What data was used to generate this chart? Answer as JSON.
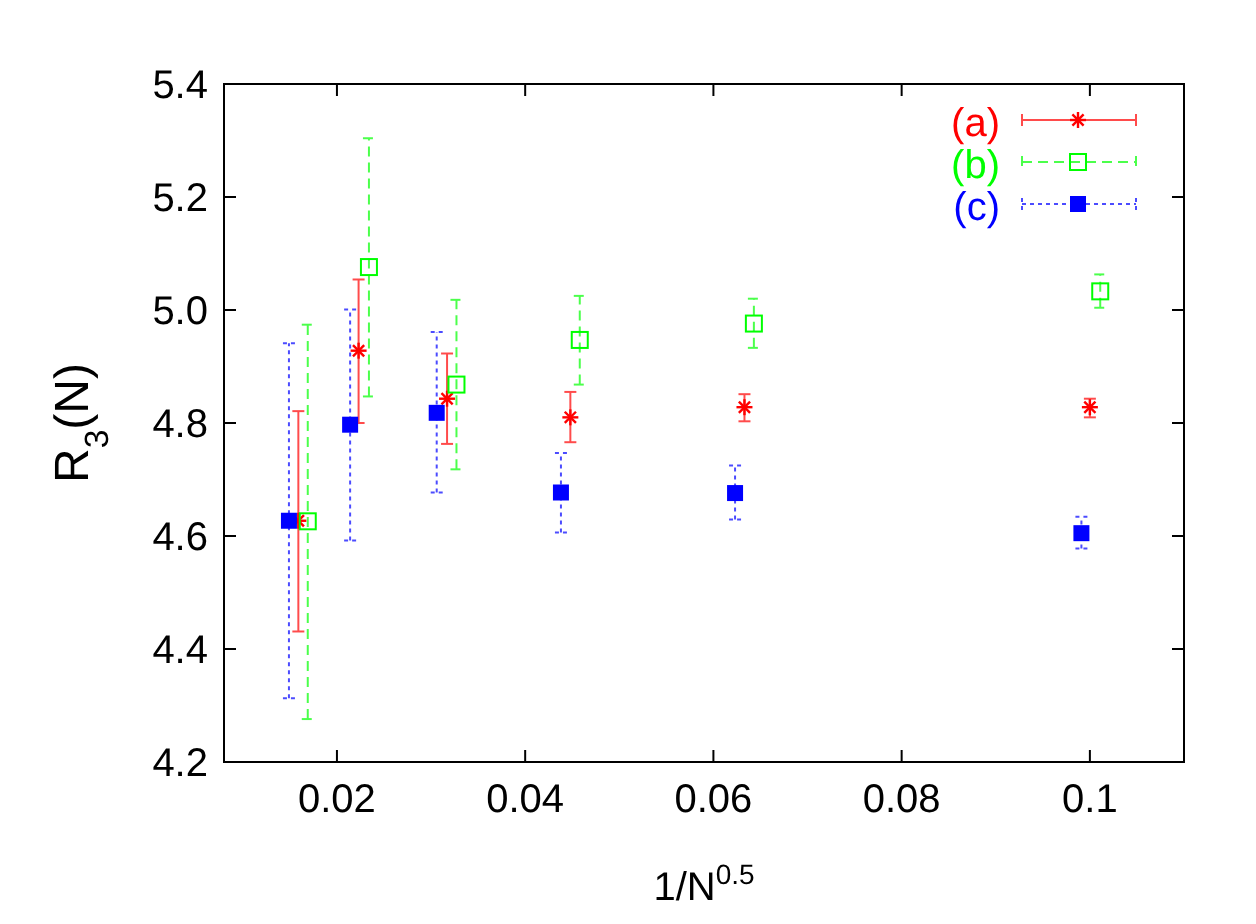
{
  "chart_data": {
    "type": "scatter",
    "xlabel": "1/N$^{0.5}$",
    "ylabel": "R$_{3}$(N)",
    "xlim": [
      0.008,
      0.11
    ],
    "xticks": [
      0.02,
      0.04,
      0.06,
      0.08,
      0.1
    ],
    "ylim": [
      4.2,
      5.4
    ],
    "yticks": [
      4.2,
      4.4,
      4.6,
      4.8,
      {
        "value": 5,
        "label": "5.0"
      },
      5.2,
      5.4
    ],
    "legend": "top right",
    "grid": false,
    "series": [
      {
        "name": "(a)",
        "color": "#ff0000",
        "marker": "cross",
        "line_style": "solid",
        "x": [
          0.0159,
          0.0223,
          0.0317,
          0.0448,
          0.0633,
          0.1
        ],
        "values": [
          4.627,
          4.928,
          4.843,
          4.81,
          4.828,
          4.828
        ],
        "errors": [
          [
            4.431,
            4.821
          ],
          [
            4.8,
            5.054
          ],
          [
            4.763,
            4.923
          ],
          [
            4.766,
            4.855
          ],
          [
            4.803,
            4.851
          ],
          [
            4.81,
            4.843
          ]
        ]
      },
      {
        "name": "(b)",
        "color": "#00ff00",
        "marker": "square",
        "line_style": "dashed",
        "x": [
          0.0169,
          0.0234,
          0.0327,
          0.0458,
          0.0643,
          0.1011
        ],
        "values": [
          4.626,
          5.076,
          4.868,
          4.947,
          4.976,
          5.033
        ],
        "errors": [
          [
            4.276,
            4.974
          ],
          [
            4.847,
            5.304
          ],
          [
            4.718,
            5.018
          ],
          [
            4.868,
            5.025
          ],
          [
            4.933,
            5.02
          ],
          [
            5.004,
            5.063
          ]
        ]
      },
      {
        "name": "(c)",
        "color": "#0000ff",
        "marker": "square",
        "line_style": "dotted",
        "x": [
          0.0149,
          0.0214,
          0.0306,
          0.0438,
          0.0623,
          0.0991
        ],
        "values": [
          4.627,
          4.797,
          4.818,
          4.677,
          4.676,
          4.605
        ],
        "errors": [
          [
            4.313,
            4.941
          ],
          [
            4.592,
            5.001
          ],
          [
            4.677,
            4.961
          ],
          [
            4.606,
            4.747
          ],
          [
            4.629,
            4.725
          ],
          [
            4.578,
            4.634
          ]
        ]
      }
    ]
  }
}
